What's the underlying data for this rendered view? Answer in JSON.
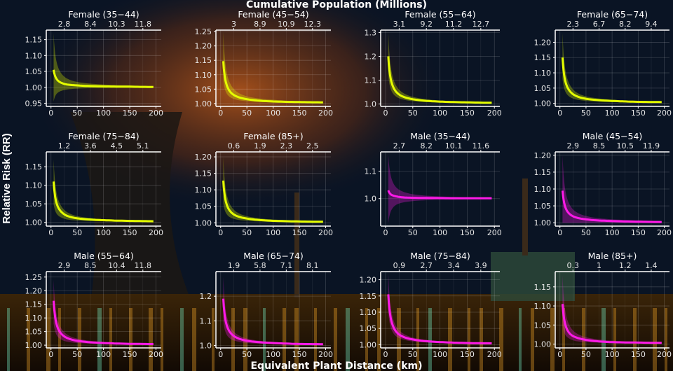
{
  "chart_data": {
    "type": "line",
    "title": "Cumulative Population (Millions)",
    "xlabel": "Equivalent Plant Distance (km)",
    "ylabel": "Relative Risk (RR)",
    "grid": true,
    "x_ticks": [
      0,
      50,
      100,
      150,
      200
    ],
    "xlim": [
      0,
      200
    ],
    "x": [
      5,
      10,
      20,
      30,
      50,
      100,
      150,
      200
    ],
    "colors": {
      "Female": "#e5ff00",
      "Male": "#ff1ae8"
    },
    "panels": [
      {
        "label": "Female (35−44)",
        "sex": "Female",
        "top_ticks": [
          "2.8",
          "8.4",
          "10.3",
          "11.8"
        ],
        "ylim": [
          0.94,
          1.18
        ],
        "y_ticks": [
          "0.95",
          "1.00",
          "1.05",
          "1.10",
          "1.15"
        ],
        "rr": [
          1.055,
          1.028,
          1.014,
          1.009,
          1.006,
          1.003,
          1.002,
          1.001
        ],
        "ci_upper": [
          1.17,
          1.085,
          1.043,
          1.028,
          1.017,
          1.009,
          1.006,
          1.004
        ],
        "ci_lower": [
          0.955,
          0.978,
          0.989,
          0.993,
          0.996,
          0.998,
          0.999,
          0.999
        ]
      },
      {
        "label": "Female (45−54)",
        "sex": "Female",
        "top_ticks": [
          "3",
          "8.9",
          "10.9",
          "12.3"
        ],
        "ylim": [
          0.99,
          1.255
        ],
        "y_ticks": [
          "1.00",
          "1.05",
          "1.10",
          "1.15",
          "1.20",
          "1.25"
        ],
        "rr": [
          1.147,
          1.074,
          1.037,
          1.025,
          1.015,
          1.007,
          1.005,
          1.004
        ],
        "ci_upper": [
          1.25,
          1.125,
          1.063,
          1.042,
          1.025,
          1.013,
          1.008,
          1.006
        ],
        "ci_lower": [
          1.08,
          1.04,
          1.02,
          1.013,
          1.008,
          1.004,
          1.003,
          1.002
        ]
      },
      {
        "label": "Female (55−64)",
        "sex": "Female",
        "top_ticks": [
          "3.1",
          "9.2",
          "11.2",
          "12.7"
        ],
        "ylim": [
          0.99,
          1.31
        ],
        "y_ticks": [
          "1.0",
          "1.1",
          "1.2",
          "1.3"
        ],
        "rr": [
          1.2,
          1.1,
          1.05,
          1.033,
          1.02,
          1.01,
          1.007,
          1.005
        ],
        "ci_upper": [
          1.3,
          1.15,
          1.075,
          1.05,
          1.03,
          1.015,
          1.01,
          1.008
        ],
        "ci_lower": [
          1.12,
          1.06,
          1.03,
          1.02,
          1.012,
          1.006,
          1.004,
          1.003
        ]
      },
      {
        "label": "Female (65−74)",
        "sex": "Female",
        "top_ticks": [
          "2.3",
          "6.7",
          "8.2",
          "9.4"
        ],
        "ylim": [
          0.99,
          1.24
        ],
        "y_ticks": [
          "1.00",
          "1.05",
          "1.10",
          "1.15",
          "1.20"
        ],
        "rr": [
          1.15,
          1.075,
          1.038,
          1.025,
          1.015,
          1.008,
          1.005,
          1.004
        ],
        "ci_upper": [
          1.23,
          1.115,
          1.058,
          1.038,
          1.023,
          1.012,
          1.008,
          1.006
        ],
        "ci_lower": [
          1.08,
          1.04,
          1.02,
          1.013,
          1.008,
          1.004,
          1.003,
          1.002
        ]
      },
      {
        "label": "Female (75−84)",
        "sex": "Female",
        "top_ticks": [
          "1.2",
          "3.6",
          "4.5",
          "5.1"
        ],
        "ylim": [
          0.99,
          1.19
        ],
        "y_ticks": [
          "1.00",
          "1.05",
          "1.10",
          "1.15"
        ],
        "rr": [
          1.11,
          1.055,
          1.028,
          1.018,
          1.011,
          1.006,
          1.004,
          1.003
        ],
        "ci_upper": [
          1.17,
          1.085,
          1.043,
          1.028,
          1.017,
          1.009,
          1.006,
          1.004
        ],
        "ci_lower": [
          1.05,
          1.025,
          1.013,
          1.008,
          1.005,
          1.003,
          1.002,
          1.001
        ]
      },
      {
        "label": "Female (85+)",
        "sex": "Female",
        "top_ticks": [
          "0.6",
          "1.9",
          "2.3",
          "2.5"
        ],
        "ylim": [
          0.99,
          1.215
        ],
        "y_ticks": [
          "1.00",
          "1.05",
          "1.10",
          "1.15",
          "1.20"
        ],
        "rr": [
          1.128,
          1.064,
          1.032,
          1.021,
          1.013,
          1.006,
          1.004,
          1.003
        ],
        "ci_upper": [
          1.2,
          1.1,
          1.05,
          1.033,
          1.02,
          1.01,
          1.007,
          1.005
        ],
        "ci_lower": [
          1.06,
          1.03,
          1.015,
          1.01,
          1.006,
          1.003,
          1.002,
          1.002
        ]
      },
      {
        "label": "Male (35−44)",
        "sex": "Male",
        "top_ticks": [
          "2.7",
          "8.2",
          "10.1",
          "11.6"
        ],
        "ylim": [
          0.9,
          1.17
        ],
        "y_ticks": [
          "1.0",
          "1.1"
        ],
        "rr": [
          1.03,
          1.015,
          1.008,
          1.005,
          1.003,
          1.002,
          1.001,
          1.001
        ],
        "ci_upper": [
          1.16,
          1.08,
          1.04,
          1.027,
          1.016,
          1.008,
          1.005,
          1.004
        ],
        "ci_lower": [
          0.91,
          0.955,
          0.978,
          0.985,
          0.991,
          0.996,
          0.997,
          0.998
        ]
      },
      {
        "label": "Male (45−54)",
        "sex": "Male",
        "top_ticks": [
          "2.9",
          "8.5",
          "10.5",
          "11.9"
        ],
        "ylim": [
          0.99,
          1.21
        ],
        "y_ticks": [
          "1.00",
          "1.05",
          "1.10",
          "1.15",
          "1.20"
        ],
        "rr": [
          1.095,
          1.048,
          1.024,
          1.016,
          1.01,
          1.005,
          1.003,
          1.002
        ],
        "ci_upper": [
          1.2,
          1.1,
          1.05,
          1.033,
          1.02,
          1.01,
          1.007,
          1.005
        ],
        "ci_lower": [
          1.0,
          1.0,
          1.0,
          1.0,
          1.0,
          1.0,
          1.0,
          1.0
        ]
      },
      {
        "label": "Male (55−64)",
        "sex": "Male",
        "top_ticks": [
          "2.9",
          "8.5",
          "10.4",
          "11.8"
        ],
        "ylim": [
          0.99,
          1.27
        ],
        "y_ticks": [
          "1.00",
          "1.05",
          "1.10",
          "1.15",
          "1.20",
          "1.25"
        ],
        "rr": [
          1.163,
          1.082,
          1.041,
          1.027,
          1.016,
          1.008,
          1.005,
          1.004
        ],
        "ci_upper": [
          1.24,
          1.12,
          1.06,
          1.04,
          1.024,
          1.012,
          1.008,
          1.006
        ],
        "ci_lower": [
          1.08,
          1.04,
          1.02,
          1.013,
          1.008,
          1.004,
          1.003,
          1.002
        ]
      },
      {
        "label": "Male (65−74)",
        "sex": "Male",
        "top_ticks": [
          "1.9",
          "5.8",
          "7.1",
          "8.1"
        ],
        "ylim": [
          0.99,
          1.3
        ],
        "y_ticks": [
          "1.0",
          "1.1",
          "1.2"
        ],
        "rr": [
          1.19,
          1.095,
          1.048,
          1.032,
          1.019,
          1.01,
          1.006,
          1.005
        ],
        "ci_upper": [
          1.28,
          1.14,
          1.07,
          1.047,
          1.028,
          1.014,
          1.009,
          1.007
        ],
        "ci_lower": [
          1.1,
          1.05,
          1.025,
          1.017,
          1.01,
          1.005,
          1.003,
          1.003
        ]
      },
      {
        "label": "Male (75−84)",
        "sex": "Male",
        "top_ticks": [
          "0.9",
          "2.7",
          "3.4",
          "3.9"
        ],
        "ylim": [
          0.99,
          1.225
        ],
        "y_ticks": [
          "1.00",
          "1.05",
          "1.10",
          "1.15",
          "1.20"
        ],
        "rr": [
          1.155,
          1.078,
          1.039,
          1.026,
          1.016,
          1.008,
          1.005,
          1.004
        ],
        "ci_upper": [
          1.22,
          1.11,
          1.055,
          1.037,
          1.022,
          1.011,
          1.007,
          1.006
        ],
        "ci_lower": [
          1.1,
          1.05,
          1.025,
          1.017,
          1.01,
          1.005,
          1.003,
          1.003
        ]
      },
      {
        "label": "Male (85+)",
        "sex": "Male",
        "top_ticks": [
          "0.3",
          "1",
          "1.2",
          "1.4"
        ],
        "ylim": [
          0.99,
          1.19
        ],
        "y_ticks": [
          "1.00",
          "1.05",
          "1.10",
          "1.15"
        ],
        "rr": [
          1.105,
          1.053,
          1.026,
          1.018,
          1.011,
          1.005,
          1.004,
          1.003
        ],
        "ci_upper": [
          1.18,
          1.09,
          1.045,
          1.03,
          1.018,
          1.009,
          1.006,
          1.005
        ],
        "ci_lower": [
          1.05,
          1.025,
          1.013,
          1.008,
          1.005,
          1.003,
          1.002,
          1.001
        ]
      }
    ]
  }
}
